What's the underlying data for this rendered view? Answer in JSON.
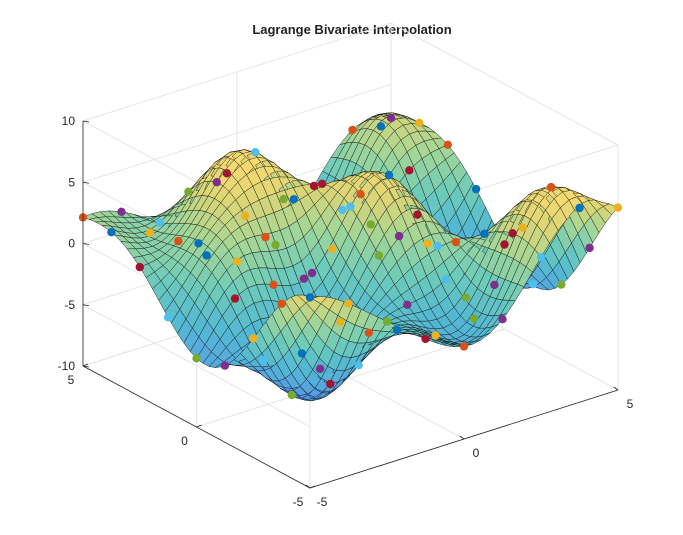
{
  "chart_data": {
    "type": "surface",
    "title": "Lagrange Bivariate Interpolation",
    "xlabel": "",
    "ylabel": "",
    "zlabel": "",
    "xlim": [
      -5,
      5
    ],
    "ylim": [
      -5,
      5
    ],
    "zlim": [
      -10,
      10
    ],
    "x_ticks": [
      "-5",
      "0",
      "5"
    ],
    "y_ticks": [
      "-5",
      "0",
      "5"
    ],
    "z_ticks": [
      "-10",
      "-5",
      "0",
      "5",
      "10"
    ],
    "grid": true,
    "colormap": "parula",
    "surface": {
      "function": "z = 3*sin(1.3*x)*cos(0.9*y) + 4*cos(0.7*x + 0.6*y) + 2*sin(0.8*y)",
      "mesh_density": 36
    },
    "nodes": {
      "description": "interpolation nodes on a 9x9 grid, drawn as colored markers",
      "count": 81,
      "colors": [
        "#0072BD",
        "#D95319",
        "#EDB120",
        "#7E2F8E",
        "#77AC30",
        "#4DBEEE",
        "#A2142F"
      ]
    }
  }
}
